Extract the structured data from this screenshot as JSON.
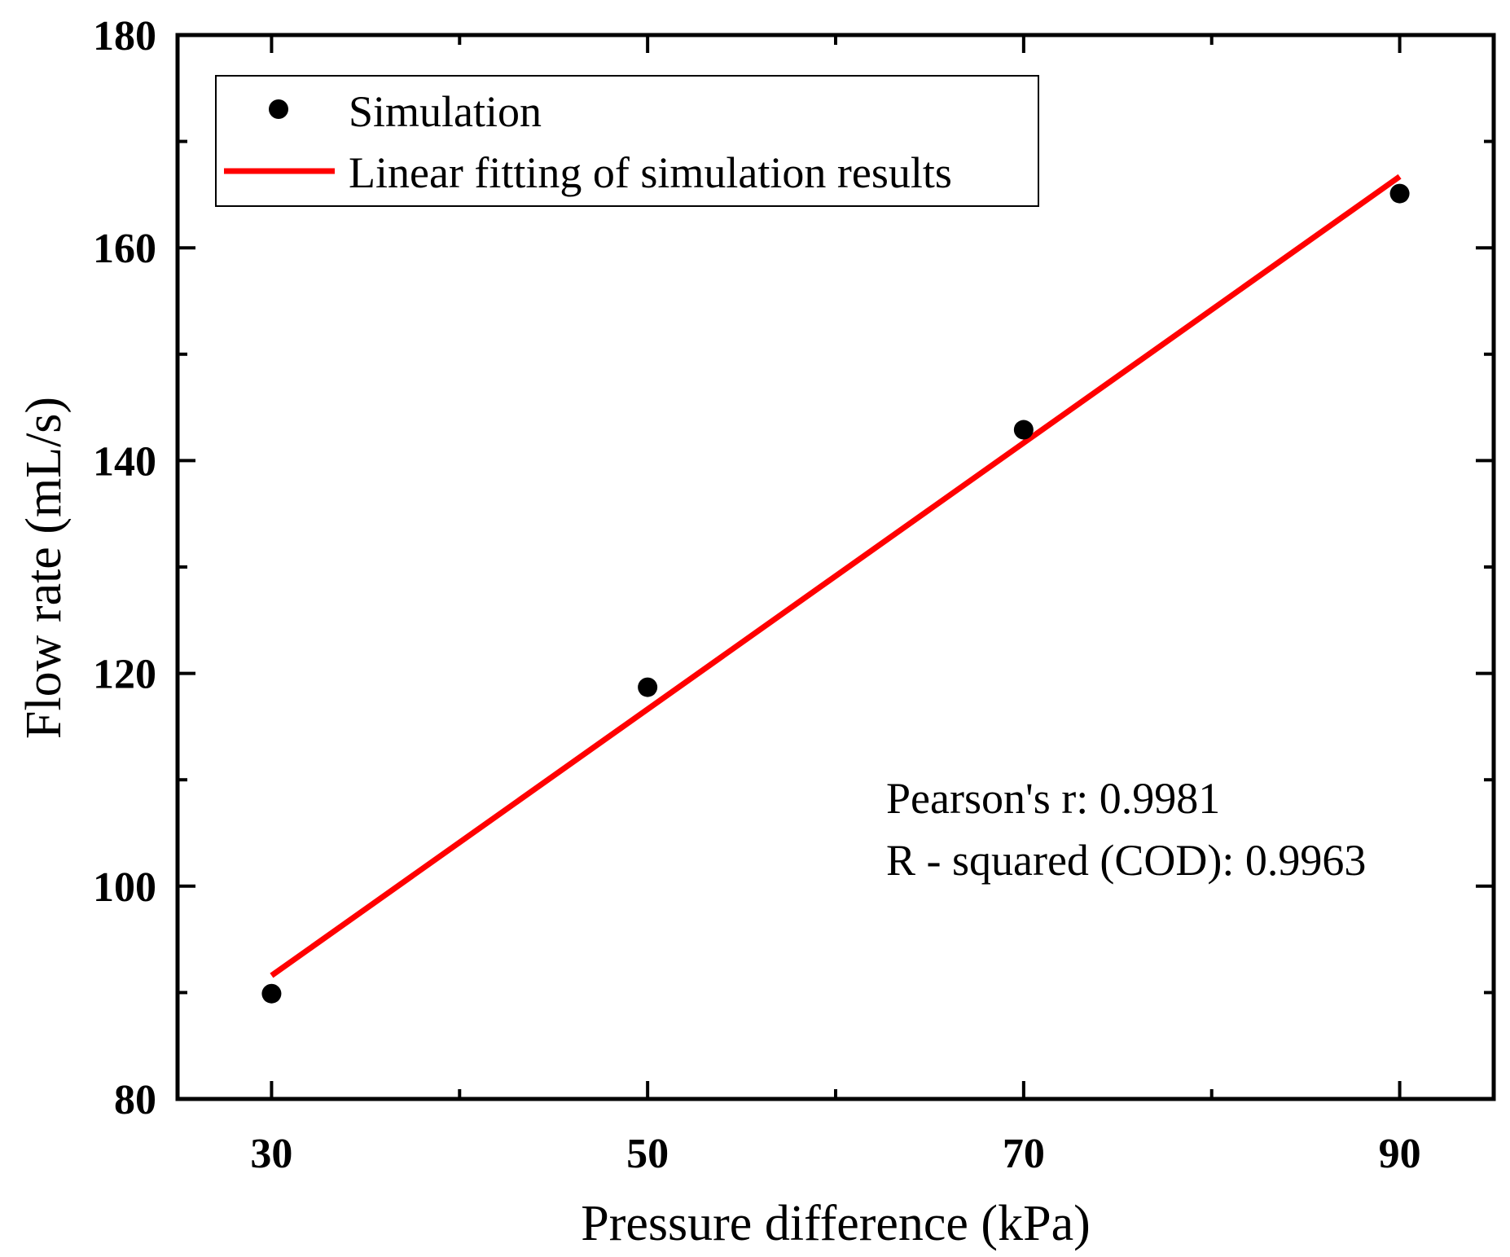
{
  "chart_data": {
    "type": "scatter",
    "title": "",
    "xlabel": "Pressure difference (kPa)",
    "ylabel": "Flow rate (mL/s)",
    "xlim": [
      25,
      95
    ],
    "ylim": [
      80,
      180
    ],
    "xticks_major": [
      30,
      50,
      70,
      90
    ],
    "xticks_minor": [
      40,
      60,
      80
    ],
    "yticks_major": [
      80,
      100,
      120,
      140,
      160,
      180
    ],
    "yticks_minor": [
      90,
      110,
      130,
      150,
      170
    ],
    "x_tick_labels": [
      "30",
      "50",
      "70",
      "90"
    ],
    "y_tick_labels": [
      "80",
      "100",
      "120",
      "140",
      "160",
      "180"
    ],
    "series": [
      {
        "name": "Simulation",
        "kind": "scatter",
        "color": "#000000",
        "x": [
          30,
          50,
          70,
          90
        ],
        "y": [
          89.9,
          118.7,
          142.9,
          165.1
        ]
      },
      {
        "name": "Linear fitting of simulation results",
        "kind": "line",
        "color": "#ff0000",
        "x": [
          30,
          90
        ],
        "y": [
          91.6,
          166.7
        ]
      }
    ],
    "legend": {
      "position": "top-left",
      "entries": [
        "Simulation",
        "Linear fitting of simulation results"
      ]
    },
    "annotations": [
      "Pearson's r: 0.9981",
      "R - squared (COD): 0.9963"
    ]
  }
}
